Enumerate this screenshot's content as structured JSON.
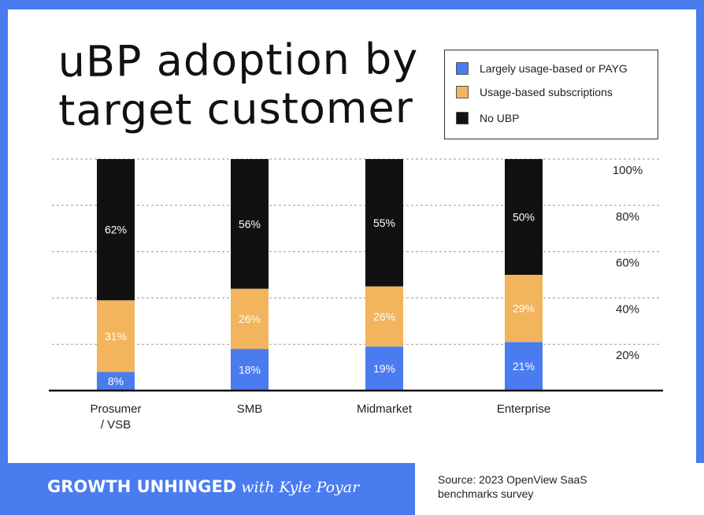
{
  "title_lines": [
    "uBP adoption by",
    "target customer"
  ],
  "legend": [
    {
      "label": "Largely usage-based or PAYG",
      "color": "#4a7cf0"
    },
    {
      "label": "Usage-based subscriptions",
      "color": "#f2b45c"
    },
    {
      "label": "No UBP",
      "color": "#111111"
    }
  ],
  "footer": {
    "brand": "GROWTH UNHINGED",
    "brand_with": "with Kyle Poyar",
    "source_lines": [
      "Source: 2023 OpenView SaaS",
      "benchmarks survey"
    ]
  },
  "chart_data": {
    "type": "bar",
    "stacked": true,
    "categories": [
      "Prosumer / VSB",
      "SMB",
      "Midmarket",
      "Enterprise"
    ],
    "category_label_lines": [
      [
        "Prosumer",
        "/ VSB"
      ],
      [
        "SMB"
      ],
      [
        "Midmarket"
      ],
      [
        "Enterprise"
      ]
    ],
    "series": [
      {
        "name": "Largely usage-based or PAYG",
        "values": [
          8,
          18,
          19,
          21
        ],
        "labels": [
          "8%",
          "18%",
          "19%",
          "21%"
        ],
        "color": "#4a7cf0"
      },
      {
        "name": "Usage-based subscriptions",
        "values": [
          31,
          26,
          26,
          29
        ],
        "labels": [
          "31%",
          "26%",
          "26%",
          "29%"
        ],
        "color": "#f2b45c"
      },
      {
        "name": "No UBP",
        "values": [
          62,
          56,
          55,
          50
        ],
        "labels": [
          "62%",
          "56%",
          "55%",
          "50%"
        ],
        "color": "#111111"
      }
    ],
    "y_ticks": [
      20,
      40,
      60,
      80,
      100
    ],
    "y_tick_labels": [
      "20%",
      "40%",
      "60%",
      "80%",
      "100%"
    ],
    "ylim": [
      0,
      100
    ],
    "gridlines": "dashed",
    "legend_position": "top-right",
    "title": "uBP adoption by target customer"
  }
}
